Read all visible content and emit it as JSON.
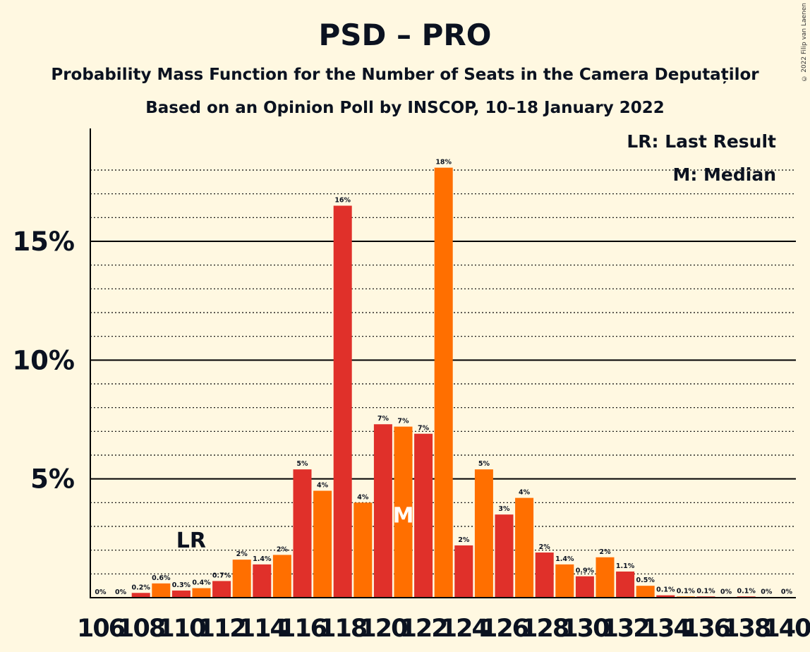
{
  "title": "PSD – PRO",
  "subtitle": "Probability Mass Function for the Number of Seats in the Camera Deputaților",
  "subtitle2": "Based on an Opinion Poll by INSCOP, 10–18 January 2022",
  "copyright": "© 2022 Filip van Laenen",
  "legend": {
    "last_result": "LR: Last Result",
    "median": "M: Median"
  },
  "colors": {
    "background": "#FFF8E1",
    "bar_primary": "#E0302A",
    "bar_secondary": "#FF6F00",
    "axis": "#000000"
  },
  "chart_data": {
    "type": "bar",
    "title": "PSD – PRO",
    "xlabel": "",
    "ylabel": "",
    "ylim": [
      0,
      19
    ],
    "y_ticks": [
      5,
      10,
      15
    ],
    "y_tick_labels": [
      "5%",
      "10%",
      "15%"
    ],
    "x_tick_labels": [
      "106",
      "108",
      "110",
      "112",
      "114",
      "116",
      "118",
      "120",
      "122",
      "124",
      "126",
      "128",
      "130",
      "132",
      "134",
      "136",
      "138",
      "140"
    ],
    "grid": "dotted minor every 1%, solid major every 5%",
    "last_result_seat": 110,
    "last_result_label": "LR",
    "median_seat": 121,
    "median_label": "M",
    "seats": [
      106,
      107,
      108,
      109,
      110,
      111,
      112,
      113,
      114,
      115,
      116,
      117,
      118,
      119,
      120,
      121,
      122,
      123,
      124,
      125,
      126,
      127,
      128,
      129,
      130,
      131,
      132,
      133,
      134,
      135,
      136,
      137,
      138,
      139,
      140
    ],
    "values": [
      0,
      0,
      0.2,
      0.6,
      0.3,
      0.4,
      0.7,
      1.6,
      1.4,
      1.8,
      5.4,
      4.5,
      16.5,
      4.0,
      7.3,
      7.2,
      6.9,
      18.1,
      2.2,
      5.4,
      3.5,
      4.2,
      1.9,
      1.4,
      0.9,
      1.7,
      1.1,
      0.5,
      0.1,
      0.05,
      0.05,
      0.02,
      0.05,
      0.02,
      0.02
    ],
    "value_labels": [
      "0%",
      "0%",
      "0.2%",
      "0.6%",
      "0.3%",
      "0.4%",
      "0.7%",
      "2%",
      "1.4%",
      "2%",
      "5%",
      "4%",
      "16%",
      "4%",
      "7%",
      "7%",
      "7%",
      "18%",
      "2%",
      "5%",
      "3%",
      "4%",
      "2%",
      "1.4%",
      "0.9%",
      "2%",
      "1.1%",
      "0.5%",
      "0.1%",
      "0.1%",
      "0.1%",
      "0%",
      "0.1%",
      "0%",
      "0%"
    ]
  }
}
